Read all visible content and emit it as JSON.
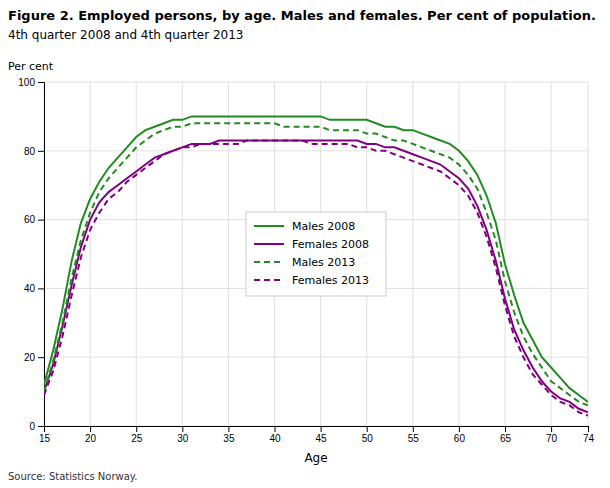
{
  "chart_data": {
    "type": "line",
    "title": "Figure 2. Employed persons, by age. Males and females. Per cent of population.",
    "subtitle": "4th quarter 2008 and 4th quarter 2013",
    "xlabel": "Age",
    "ylabel": "Per cent",
    "source": "Source: Statistics Norway.",
    "xlim": [
      15,
      74
    ],
    "ylim": [
      0,
      100
    ],
    "xticks": [
      15,
      20,
      25,
      30,
      35,
      40,
      45,
      50,
      55,
      60,
      65,
      70,
      74
    ],
    "yticks": [
      0,
      20,
      40,
      60,
      80,
      100
    ],
    "grid": true,
    "legend": "center",
    "x": [
      15,
      16,
      17,
      18,
      19,
      20,
      21,
      22,
      23,
      24,
      25,
      26,
      27,
      28,
      29,
      30,
      31,
      32,
      33,
      34,
      35,
      36,
      37,
      38,
      39,
      40,
      41,
      42,
      43,
      44,
      45,
      46,
      47,
      48,
      49,
      50,
      51,
      52,
      53,
      54,
      55,
      56,
      57,
      58,
      59,
      60,
      61,
      62,
      63,
      64,
      65,
      66,
      67,
      68,
      69,
      70,
      71,
      72,
      73,
      74
    ],
    "series": [
      {
        "name": "Males 2008",
        "color": "#228B22",
        "line_style": "solid",
        "values": [
          12,
          22,
          34,
          48,
          59,
          66,
          71,
          75,
          78,
          81,
          84,
          86,
          87,
          88,
          89,
          89,
          90,
          90,
          90,
          90,
          90,
          90,
          90,
          90,
          90,
          90,
          90,
          90,
          90,
          90,
          90,
          89,
          89,
          89,
          89,
          89,
          88,
          87,
          87,
          86,
          86,
          85,
          84,
          83,
          82,
          80,
          77,
          73,
          67,
          59,
          47,
          38,
          30,
          25,
          20,
          17,
          14,
          11,
          9,
          7
        ]
      },
      {
        "name": "Females 2008",
        "color": "#800080",
        "line_style": "solid",
        "values": [
          10,
          18,
          29,
          41,
          52,
          60,
          65,
          68,
          70,
          72,
          74,
          76,
          78,
          79,
          80,
          81,
          82,
          82,
          82,
          83,
          83,
          83,
          83,
          83,
          83,
          83,
          83,
          83,
          83,
          83,
          83,
          83,
          83,
          83,
          83,
          82,
          82,
          81,
          81,
          80,
          79,
          78,
          77,
          76,
          74,
          72,
          69,
          64,
          57,
          48,
          37,
          28,
          22,
          17,
          13,
          10,
          8,
          7,
          5,
          4
        ]
      },
      {
        "name": "Males 2013",
        "color": "#228B22",
        "line_style": "dashed",
        "values": [
          10,
          19,
          30,
          43,
          54,
          62,
          68,
          72,
          75,
          78,
          81,
          83,
          85,
          86,
          87,
          87,
          88,
          88,
          88,
          88,
          88,
          88,
          88,
          88,
          88,
          88,
          87,
          87,
          87,
          87,
          87,
          86,
          86,
          86,
          86,
          85,
          85,
          84,
          83,
          83,
          82,
          81,
          80,
          79,
          78,
          76,
          73,
          69,
          62,
          54,
          42,
          33,
          26,
          21,
          17,
          13,
          11,
          9,
          7,
          6
        ]
      },
      {
        "name": "Females 2013",
        "color": "#800080",
        "line_style": "dashed",
        "values": [
          9,
          16,
          26,
          38,
          49,
          57,
          62,
          66,
          68,
          71,
          73,
          75,
          77,
          79,
          80,
          81,
          81,
          82,
          82,
          82,
          82,
          82,
          83,
          83,
          83,
          83,
          83,
          83,
          83,
          82,
          82,
          82,
          82,
          82,
          81,
          81,
          80,
          80,
          79,
          78,
          77,
          76,
          75,
          74,
          72,
          70,
          67,
          62,
          55,
          46,
          35,
          26,
          20,
          15,
          12,
          9,
          7,
          6,
          4,
          3
        ]
      }
    ]
  }
}
